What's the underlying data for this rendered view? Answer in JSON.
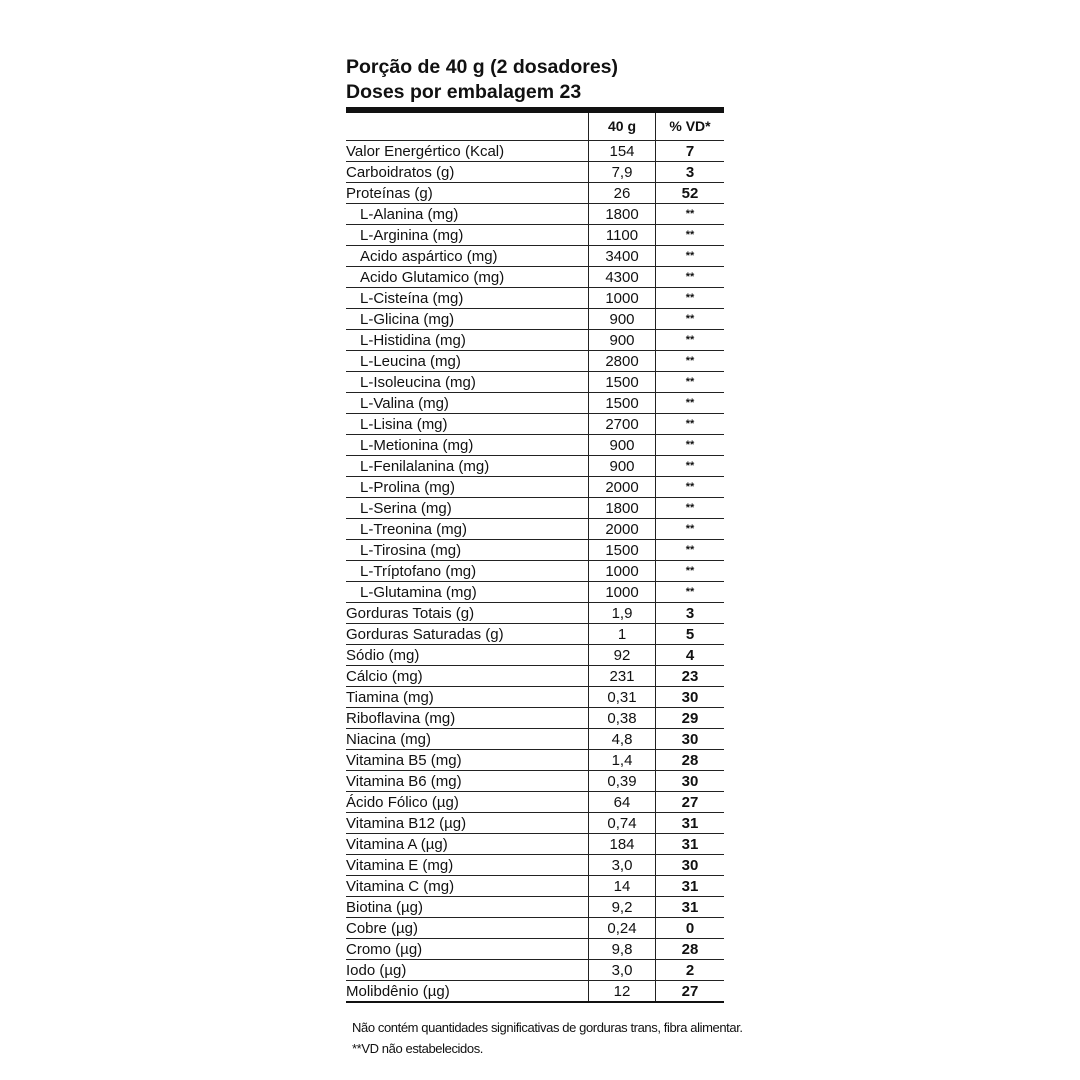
{
  "header": {
    "serving": "Porção de 40 g (2 dosadores)",
    "doses": "Doses por embalagem 23"
  },
  "table": {
    "columns": [
      "",
      "40 g",
      "% VD*"
    ],
    "rows": [
      {
        "name": "Valor Energértico (Kcal)",
        "amount": "154",
        "vd": "7",
        "indent": false
      },
      {
        "name": "Carboidratos (g)",
        "amount": "7,9",
        "vd": "3",
        "indent": false
      },
      {
        "name": "Proteínas (g)",
        "amount": "26",
        "vd": "52",
        "indent": false
      },
      {
        "name": "L-Alanina (mg)",
        "amount": "1800",
        "vd": "**",
        "indent": true
      },
      {
        "name": "L-Arginina (mg)",
        "amount": "1100",
        "vd": "**",
        "indent": true
      },
      {
        "name": "Acido aspártico (mg)",
        "amount": "3400",
        "vd": "**",
        "indent": true
      },
      {
        "name": "Acido Glutamico (mg)",
        "amount": "4300",
        "vd": "**",
        "indent": true
      },
      {
        "name": "L-Cisteína (mg)",
        "amount": "1000",
        "vd": "**",
        "indent": true
      },
      {
        "name": "L-Glicina (mg)",
        "amount": "900",
        "vd": "**",
        "indent": true
      },
      {
        "name": "L-Histidina (mg)",
        "amount": "900",
        "vd": "**",
        "indent": true
      },
      {
        "name": "L-Leucina (mg)",
        "amount": "2800",
        "vd": "**",
        "indent": true
      },
      {
        "name": "L-Isoleucina (mg)",
        "amount": "1500",
        "vd": "**",
        "indent": true
      },
      {
        "name": "L-Valina (mg)",
        "amount": "1500",
        "vd": "**",
        "indent": true
      },
      {
        "name": "L-Lisina (mg)",
        "amount": "2700",
        "vd": "**",
        "indent": true
      },
      {
        "name": "L-Metionina (mg)",
        "amount": "900",
        "vd": "**",
        "indent": true
      },
      {
        "name": "L-Fenilalanina (mg)",
        "amount": "900",
        "vd": "**",
        "indent": true
      },
      {
        "name": "L-Prolina (mg)",
        "amount": "2000",
        "vd": "**",
        "indent": true
      },
      {
        "name": "L-Serina (mg)",
        "amount": "1800",
        "vd": "**",
        "indent": true
      },
      {
        "name": "L-Treonina (mg)",
        "amount": "2000",
        "vd": "**",
        "indent": true
      },
      {
        "name": "L-Tirosina (mg)",
        "amount": "1500",
        "vd": "**",
        "indent": true
      },
      {
        "name": "L-Tríptofano (mg)",
        "amount": "1000",
        "vd": "**",
        "indent": true
      },
      {
        "name": "L-Glutamina (mg)",
        "amount": "1000",
        "vd": "**",
        "indent": true
      },
      {
        "name": "Gorduras Totais (g)",
        "amount": "1,9",
        "vd": "3",
        "indent": false
      },
      {
        "name": "Gorduras Saturadas (g)",
        "amount": "1",
        "vd": "5",
        "indent": false
      },
      {
        "name": "Sódio (mg)",
        "amount": "92",
        "vd": "4",
        "indent": false
      },
      {
        "name": "Cálcio (mg)",
        "amount": "231",
        "vd": "23",
        "indent": false
      },
      {
        "name": "Tiamina (mg)",
        "amount": "0,31",
        "vd": "30",
        "indent": false
      },
      {
        "name": "Riboflavina (mg)",
        "amount": "0,38",
        "vd": "29",
        "indent": false
      },
      {
        "name": "Niacina (mg)",
        "amount": "4,8",
        "vd": "30",
        "indent": false
      },
      {
        "name": "Vitamina B5 (mg)",
        "amount": "1,4",
        "vd": "28",
        "indent": false
      },
      {
        "name": "Vitamina B6 (mg)",
        "amount": "0,39",
        "vd": "30",
        "indent": false
      },
      {
        "name": "Ácido Fólico (µg)",
        "amount": "64",
        "vd": "27",
        "indent": false
      },
      {
        "name": "Vitamina B12 (µg)",
        "amount": "0,74",
        "vd": "31",
        "indent": false
      },
      {
        "name": "Vitamina A (µg)",
        "amount": "184",
        "vd": "31",
        "indent": false
      },
      {
        "name": "Vitamina E (mg)",
        "amount": "3,0",
        "vd": "30",
        "indent": false
      },
      {
        "name": "Vitamina C (mg)",
        "amount": "14",
        "vd": "31",
        "indent": false
      },
      {
        "name": "Biotina (µg)",
        "amount": "9,2",
        "vd": "31",
        "indent": false
      },
      {
        "name": "Cobre (µg)",
        "amount": "0,24",
        "vd": "0",
        "indent": false
      },
      {
        "name": "Cromo (µg)",
        "amount": "9,8",
        "vd": "28",
        "indent": false
      },
      {
        "name": "Iodo (µg)",
        "amount": "3,0",
        "vd": "2",
        "indent": false
      },
      {
        "name": "Molibdênio (µg)",
        "amount": "12",
        "vd": "27",
        "indent": false
      }
    ]
  },
  "footer": {
    "note1": "Não contém quantidades significativas de gorduras trans, fibra alimentar.",
    "note2": "**VD não estabelecidos."
  }
}
